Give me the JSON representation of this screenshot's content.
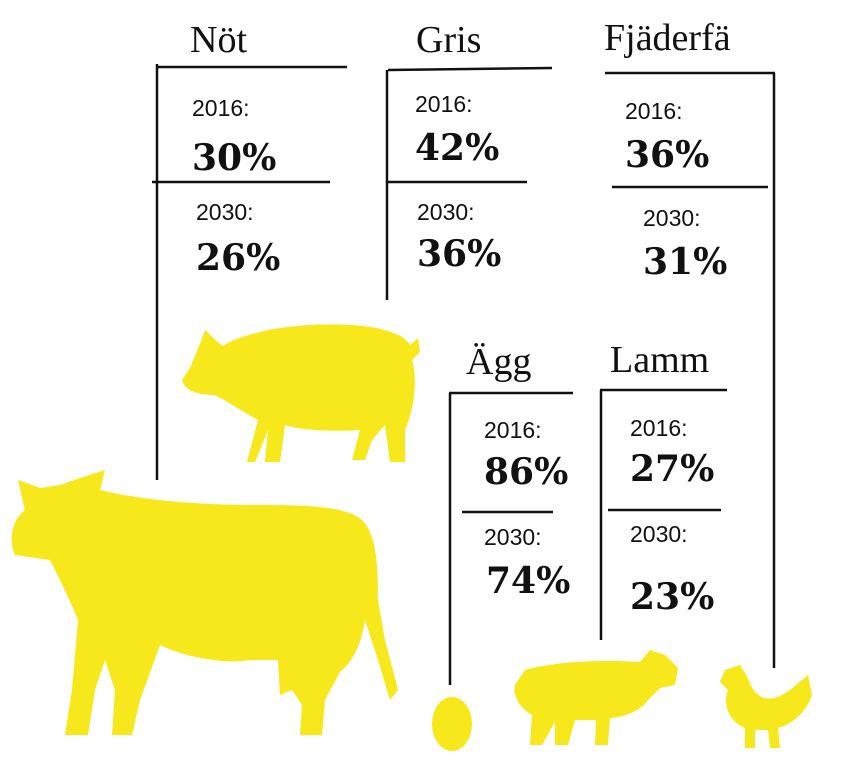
{
  "groups": [
    {
      "name": "Nöt",
      "rows": [
        {
          "label": "2016:",
          "value": "30%"
        },
        {
          "label": "2030:",
          "value": "26%"
        }
      ]
    },
    {
      "name": "Gris",
      "rows": [
        {
          "label": "2016:",
          "value": "42%"
        },
        {
          "label": "2030:",
          "value": "36%"
        }
      ]
    },
    {
      "name": "Fjäderfä",
      "rows": [
        {
          "label": "2016:",
          "value": "36%"
        },
        {
          "label": "2030:",
          "value": "31%"
        }
      ]
    },
    {
      "name": "Ägg",
      "rows": [
        {
          "label": "2016:",
          "value": "86%"
        },
        {
          "label": "2030:",
          "value": "74%"
        }
      ]
    },
    {
      "name": "Lamm",
      "rows": [
        {
          "label": "2016:",
          "value": "27%"
        },
        {
          "label": "2030:",
          "value": "23%"
        }
      ]
    }
  ]
}
